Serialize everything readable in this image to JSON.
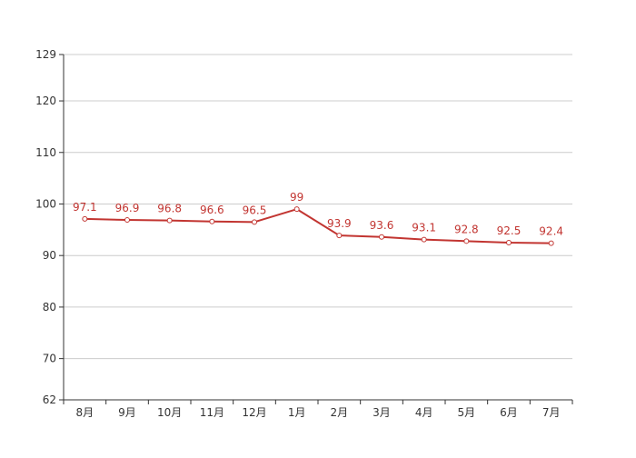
{
  "chart_data": {
    "type": "line",
    "categories": [
      "8月",
      "9月",
      "10月",
      "11月",
      "12月",
      "1月",
      "2月",
      "3月",
      "4月",
      "5月",
      "6月",
      "7月"
    ],
    "series": [
      {
        "values": [
          97.1,
          96.9,
          96.8,
          96.6,
          96.5,
          99,
          93.9,
          93.6,
          93.1,
          92.8,
          92.5,
          92.4
        ],
        "labels": [
          "97.1",
          "96.9",
          "96.8",
          "96.6",
          "96.5",
          "99",
          "93.9",
          "93.6",
          "93.1",
          "92.8",
          "92.5",
          "92.4"
        ]
      }
    ],
    "yticks": [
      62,
      70,
      80,
      90,
      100,
      110,
      120,
      129
    ],
    "ytick_labels": [
      "62",
      "70",
      "80",
      "90",
      "100",
      "110",
      "120",
      "129"
    ],
    "ylim": [
      62,
      129
    ],
    "grid": true,
    "colors": {
      "line": "#c23531",
      "marker_fill": "#ffffff",
      "label": "#c23531",
      "grid": "#cccccc",
      "axis": "#333333",
      "tick_label": "#333333"
    }
  }
}
